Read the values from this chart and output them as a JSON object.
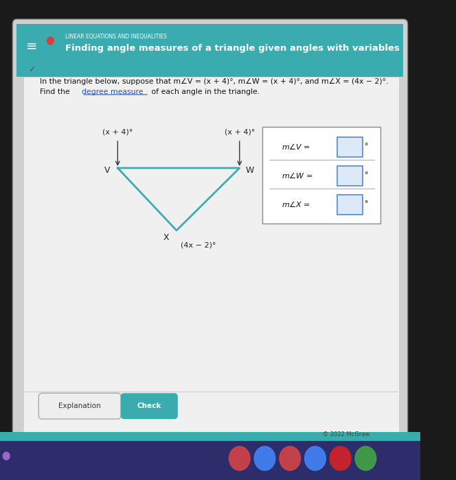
{
  "bg_color": "#1a1a1a",
  "screen_bg": "#e8e8e8",
  "header_color": "#3aacb0",
  "header_text_small": "LINEAR EQUATIONS AND INEQUALITIES",
  "header_text_large": "Finding angle measures of a triangle given angles with variables",
  "problem_text": "In the triangle below, suppose that m∠V = (x + 4)°, m∠W = (x + 4)°, and m∠X = (4x − 2)°.",
  "find_text_1": "Find the ",
  "find_text_2": "degree measure",
  "find_text_3": " of each angle in the triangle.",
  "triangle_color": "#3aacb0",
  "angle_V_label": "(x + 4)°",
  "angle_W_label": "(x + 4)°",
  "angle_X_label": "(4x − 2)°",
  "answer_labels": [
    "m∠V =",
    "m∠W =",
    "m∠X ="
  ],
  "button_explanation": "Explanation",
  "button_check": "Check",
  "button_check_color": "#3aacb0",
  "footer_text": "© 2022 McGraw",
  "taskbar_color": "#2d2d6b",
  "taskbar_stripe": "#3aacb0"
}
